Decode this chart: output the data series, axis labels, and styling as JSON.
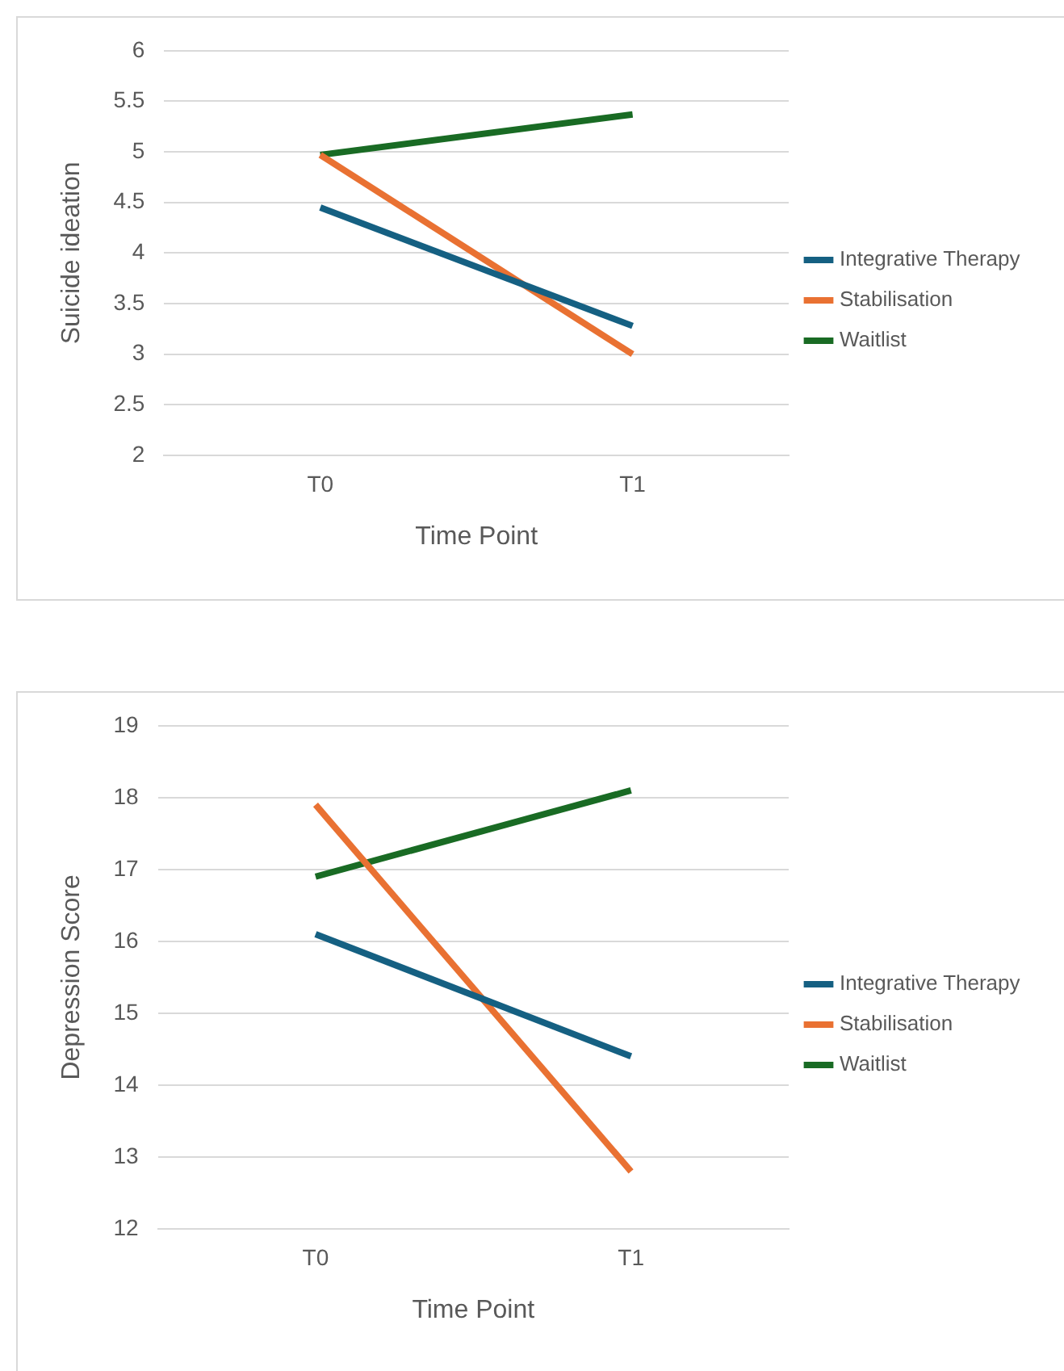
{
  "chart_data": [
    {
      "type": "line",
      "xlabel": "Time Point",
      "ylabel": "Suicide ideation",
      "categories": [
        "T0",
        "T1"
      ],
      "series": [
        {
          "name": "Integrative Therapy",
          "color": "#156082",
          "values": [
            4.45,
            3.28
          ]
        },
        {
          "name": "Stabilisation",
          "color": "#e97132",
          "values": [
            4.97,
            3.0
          ]
        },
        {
          "name": "Waitlist",
          "color": "#196b24",
          "values": [
            4.97,
            5.37
          ]
        }
      ],
      "ylim": [
        2,
        6
      ],
      "yticks": [
        2,
        2.5,
        3,
        3.5,
        4,
        4.5,
        5,
        5.5,
        6
      ],
      "grid": "y",
      "legend": "right",
      "marker": "none"
    },
    {
      "type": "line",
      "xlabel": "Time Point",
      "ylabel": "Depression Score",
      "categories": [
        "T0",
        "T1"
      ],
      "series": [
        {
          "name": "Integrative Therapy",
          "color": "#156082",
          "values": [
            16.1,
            14.4
          ]
        },
        {
          "name": "Stabilisation",
          "color": "#e97132",
          "values": [
            17.9,
            12.8
          ]
        },
        {
          "name": "Waitlist",
          "color": "#196b24",
          "values": [
            16.9,
            18.1
          ]
        }
      ],
      "ylim": [
        12,
        19
      ],
      "yticks": [
        12,
        13,
        14,
        15,
        16,
        17,
        18,
        19
      ],
      "grid": "y",
      "legend": "right",
      "marker": "none"
    }
  ]
}
